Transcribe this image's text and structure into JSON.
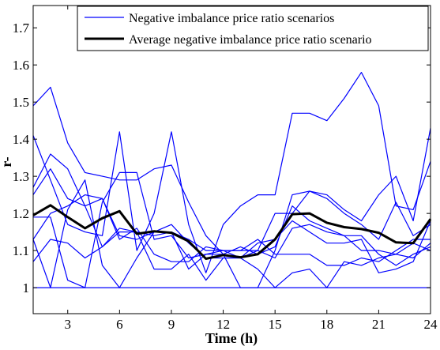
{
  "chart_data": {
    "type": "line",
    "xlabel": "Time (h)",
    "ylabel": "r-",
    "xlim": [
      1,
      24
    ],
    "ylim": [
      0.93,
      1.76
    ],
    "xticks": [
      3,
      6,
      9,
      12,
      15,
      18,
      21,
      24
    ],
    "yticks": [
      1,
      1.1,
      1.2,
      1.3,
      1.4,
      1.5,
      1.6,
      1.7
    ],
    "ytick_labels": [
      "1",
      "1.1",
      "1.2",
      "1.3",
      "1.4",
      "1.5",
      "1.6",
      "1.7"
    ],
    "grid": false,
    "legend": {
      "position": "top-right",
      "entries": [
        "Negative imbalance price ratio scenarios",
        "Average negative imbalance price ratio scenario"
      ]
    },
    "x": [
      1,
      2,
      3,
      4,
      5,
      6,
      7,
      8,
      9,
      10,
      11,
      12,
      13,
      14,
      15,
      16,
      17,
      18,
      19,
      20,
      21,
      22,
      23,
      24
    ],
    "series": [
      {
        "group": "scenario",
        "values": [
          1.49,
          1.54,
          1.39,
          1.31,
          1.3,
          1.29,
          1.29,
          1.32,
          1.33,
          1.23,
          1.14,
          1.09,
          1.0,
          1.0,
          1.1,
          1.25,
          1.26,
          1.25,
          1.21,
          1.18,
          1.25,
          1.3,
          1.18,
          1.43
        ]
      },
      {
        "group": "scenario",
        "values": [
          1.41,
          1.29,
          1.17,
          1.15,
          1.14,
          1.42,
          1.1,
          1.2,
          1.42,
          1.17,
          1.04,
          1.17,
          1.22,
          1.25,
          1.25,
          1.47,
          1.47,
          1.45,
          1.51,
          1.58,
          1.49,
          1.22,
          1.21,
          1.34
        ]
      },
      {
        "group": "scenario",
        "values": [
          1.27,
          1.36,
          1.32,
          1.22,
          1.24,
          1.14,
          1.13,
          1.15,
          1.15,
          1.13,
          1.1,
          1.1,
          1.1,
          1.1,
          1.2,
          1.2,
          1.26,
          1.24,
          1.2,
          1.17,
          1.13,
          1.23,
          1.14,
          1.17
        ]
      },
      {
        "group": "scenario",
        "values": [
          1.19,
          1.19,
          1.02,
          1.0,
          1.23,
          1.31,
          1.31,
          1.13,
          1.14,
          1.08,
          1.09,
          1.09,
          1.11,
          1.09,
          1.11,
          1.22,
          1.18,
          1.16,
          1.14,
          1.1,
          1.1,
          1.09,
          1.08,
          1.12
        ]
      },
      {
        "group": "scenario",
        "values": [
          1.13,
          1.2,
          1.22,
          1.25,
          1.24,
          1.13,
          1.16,
          1.09,
          1.07,
          1.07,
          1.11,
          1.1,
          1.1,
          1.13,
          1.09,
          1.09,
          1.09,
          1.06,
          1.06,
          1.08,
          1.07,
          1.1,
          1.13,
          1.13
        ]
      },
      {
        "group": "scenario",
        "values": [
          1.07,
          1.13,
          1.12,
          1.08,
          1.11,
          1.16,
          1.15,
          1.05,
          1.05,
          1.09,
          1.02,
          1.08,
          1.08,
          1.1,
          1.08,
          1.16,
          1.17,
          1.15,
          1.14,
          1.14,
          1.09,
          1.06,
          1.09,
          1.11
        ]
      },
      {
        "group": "scenario",
        "values": [
          1.25,
          1.32,
          1.24,
          1.22,
          1.11,
          1.15,
          1.15,
          1.14,
          1.15,
          1.05,
          1.09,
          1.1,
          1.08,
          1.12,
          1.13,
          1.18,
          1.15,
          1.12,
          1.12,
          1.13,
          1.04,
          1.05,
          1.07,
          1.18
        ]
      },
      {
        "group": "scenario",
        "values": [
          1.13,
          1.0,
          1.21,
          1.29,
          1.06,
          1.0,
          1.08,
          1.15,
          1.17,
          1.12,
          1.08,
          1.08,
          1.08,
          1.05,
          1.0,
          1.04,
          1.05,
          1.0,
          1.07,
          1.06,
          1.08,
          1.09,
          1.12,
          1.1
        ]
      },
      {
        "group": "scenario",
        "values": [
          1.0,
          1.0,
          1.0,
          1.0,
          1.0,
          1.0,
          1.0,
          1.0,
          1.0,
          1.0,
          1.0,
          1.0,
          1.0,
          1.0,
          1.0,
          1.0,
          1.0,
          1.0,
          1.0,
          1.0,
          1.0,
          1.0,
          1.0,
          1.0
        ]
      },
      {
        "group": "average",
        "values": [
          1.195,
          1.222,
          1.19,
          1.16,
          1.187,
          1.206,
          1.145,
          1.152,
          1.148,
          1.125,
          1.078,
          1.088,
          1.082,
          1.09,
          1.13,
          1.198,
          1.2,
          1.175,
          1.163,
          1.158,
          1.148,
          1.122,
          1.12,
          1.185
        ]
      }
    ],
    "colors": {
      "scenario": "#0000ff",
      "average": "#000000",
      "axis": "#000000"
    }
  }
}
